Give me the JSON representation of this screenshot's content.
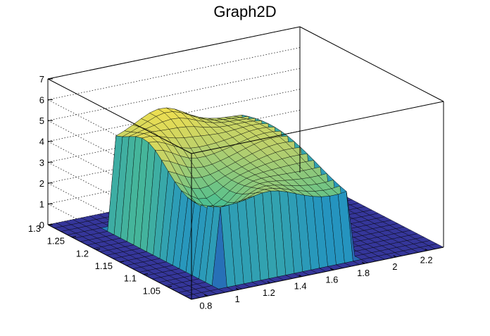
{
  "chart_data": {
    "type": "surface",
    "title": "Graph2D",
    "xlabel": "",
    "ylabel": "",
    "zlabel": "",
    "x_ticks": [
      0.8,
      1,
      1.2,
      1.4,
      1.6,
      1.8,
      2,
      2.2
    ],
    "y_ticks": [
      1.05,
      1.1,
      1.15,
      1.2,
      1.25,
      1.3
    ],
    "z_ticks": [
      0,
      1,
      2,
      3,
      4,
      5,
      6,
      7
    ],
    "xlim": [
      0.7,
      2.3
    ],
    "ylim": [
      1.0,
      1.3
    ],
    "zlim": [
      0,
      7
    ],
    "grid": true,
    "colors": {
      "low": "#35369a",
      "mid_low": "#1f8ec6",
      "mid": "#4fbf8f",
      "mid_high": "#b7cf6e",
      "high": "#f9e24b"
    }
  }
}
